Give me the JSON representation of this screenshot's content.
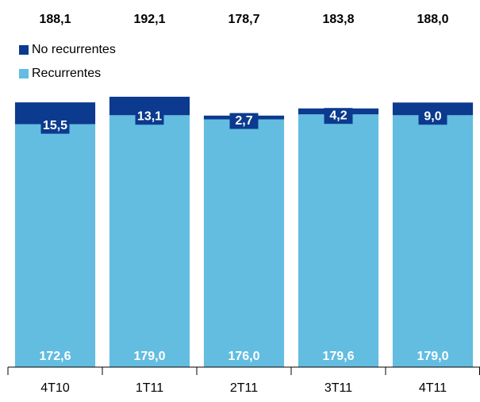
{
  "chart_data": {
    "type": "stacked_bar",
    "categories": [
      "4T10",
      "1T11",
      "2T11",
      "3T11",
      "4T11"
    ],
    "series": [
      {
        "name": "Recurrentes",
        "color": "#63bde0",
        "values": [
          172.6,
          179.0,
          176.0,
          179.6,
          179.0
        ],
        "value_labels": [
          "172,6",
          "179,0",
          "176,0",
          "179,6",
          "179,0"
        ]
      },
      {
        "name": "No recurrentes",
        "color": "#0b3a8e",
        "values": [
          15.5,
          13.1,
          2.7,
          4.2,
          9.0
        ],
        "value_labels": [
          "15,5",
          "13,1",
          "2,7",
          "4,2",
          "9,0"
        ]
      }
    ],
    "totals": [
      188.1,
      192.1,
      178.7,
      183.8,
      188.0
    ],
    "total_labels": [
      "188,1",
      "192,1",
      "178,7",
      "183,8",
      "188,0"
    ],
    "ylim": [
      0,
      200
    ]
  }
}
